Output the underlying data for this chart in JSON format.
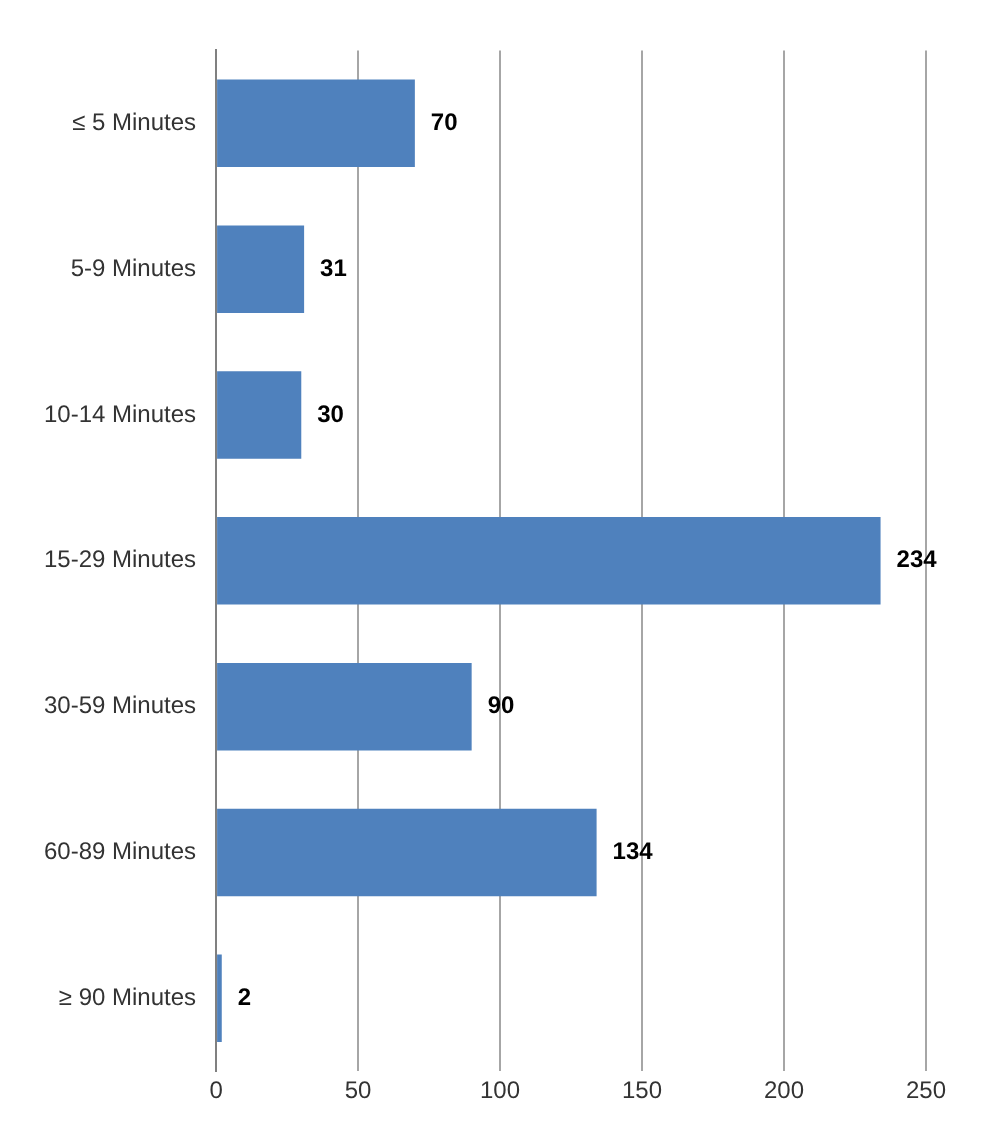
{
  "chart_data": {
    "type": "bar",
    "orientation": "horizontal",
    "categories": [
      "≤ 5 Minutes",
      "5-9 Minutes",
      "10-14 Minutes",
      "15-29 Minutes",
      "30-59 Minutes",
      "60-89 Minutes",
      "≥ 90 Minutes"
    ],
    "values": [
      70,
      31,
      30,
      234,
      90,
      134,
      2
    ],
    "color": "#4f81bd",
    "xlim": [
      0,
      250
    ],
    "xticks": [
      0,
      50,
      100,
      150,
      200,
      250
    ],
    "grid": "x",
    "data_labels": true,
    "legend": false
  }
}
